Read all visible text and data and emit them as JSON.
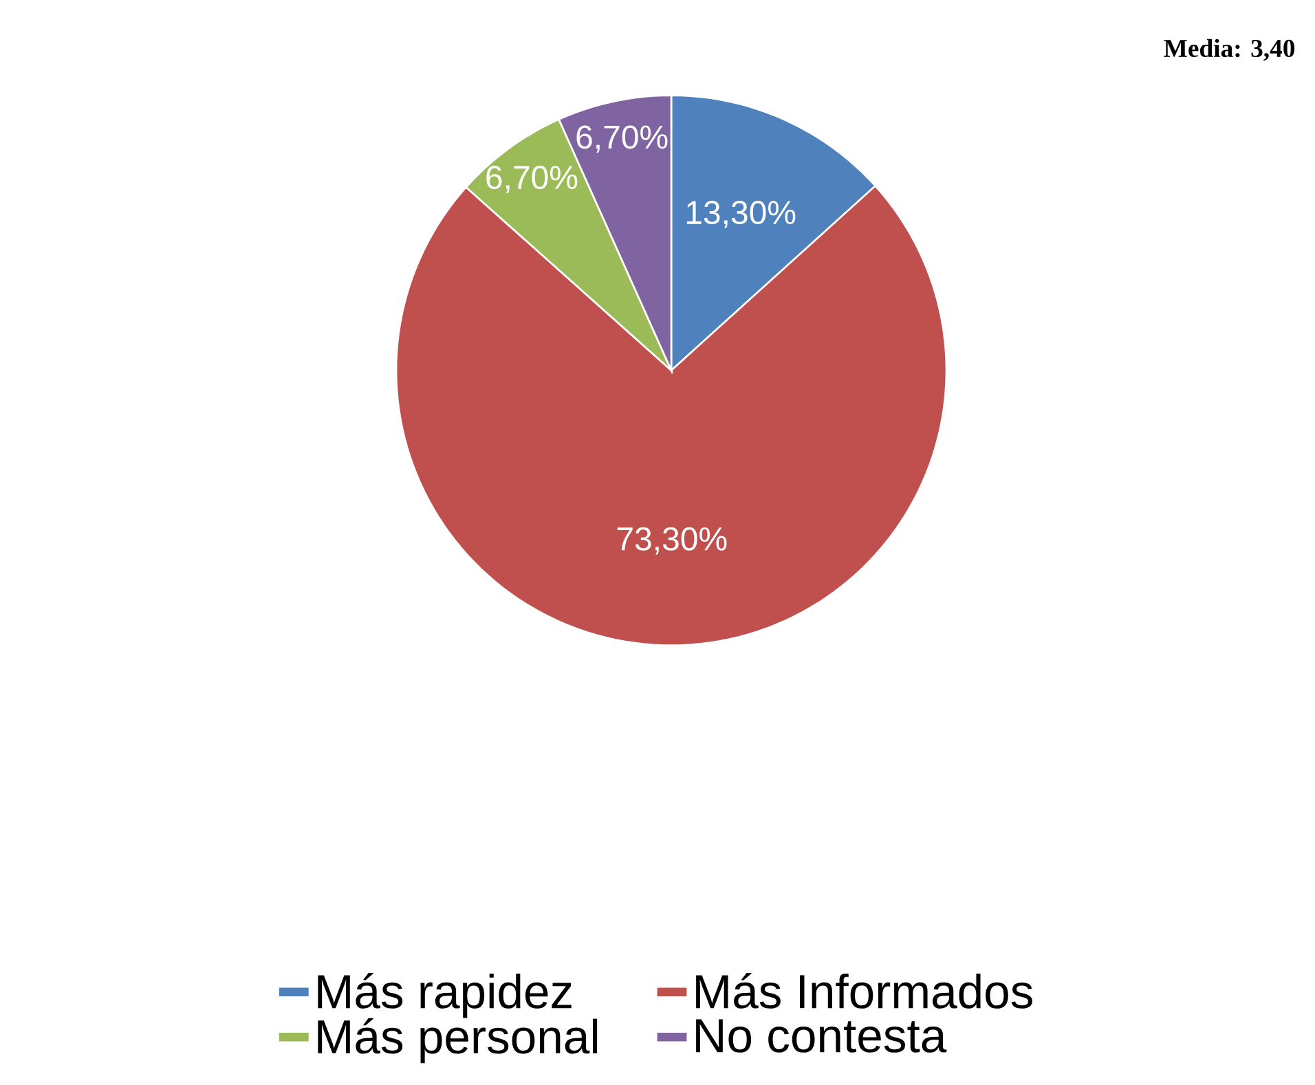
{
  "chart_data": {
    "type": "pie",
    "categories": [
      "Más rapidez",
      "Más Informados",
      "Más personal",
      "No contesta"
    ],
    "values": [
      13.3,
      73.3,
      6.7,
      6.7
    ],
    "value_labels": [
      "13,30%",
      "73,30%",
      "6,70%",
      "6,70%"
    ],
    "colors": [
      "#4f81bd",
      "#c0504d",
      "#9bbb59",
      "#8064a2"
    ],
    "annotations": [
      "Media: 3,40"
    ],
    "legend": "bottom"
  }
}
